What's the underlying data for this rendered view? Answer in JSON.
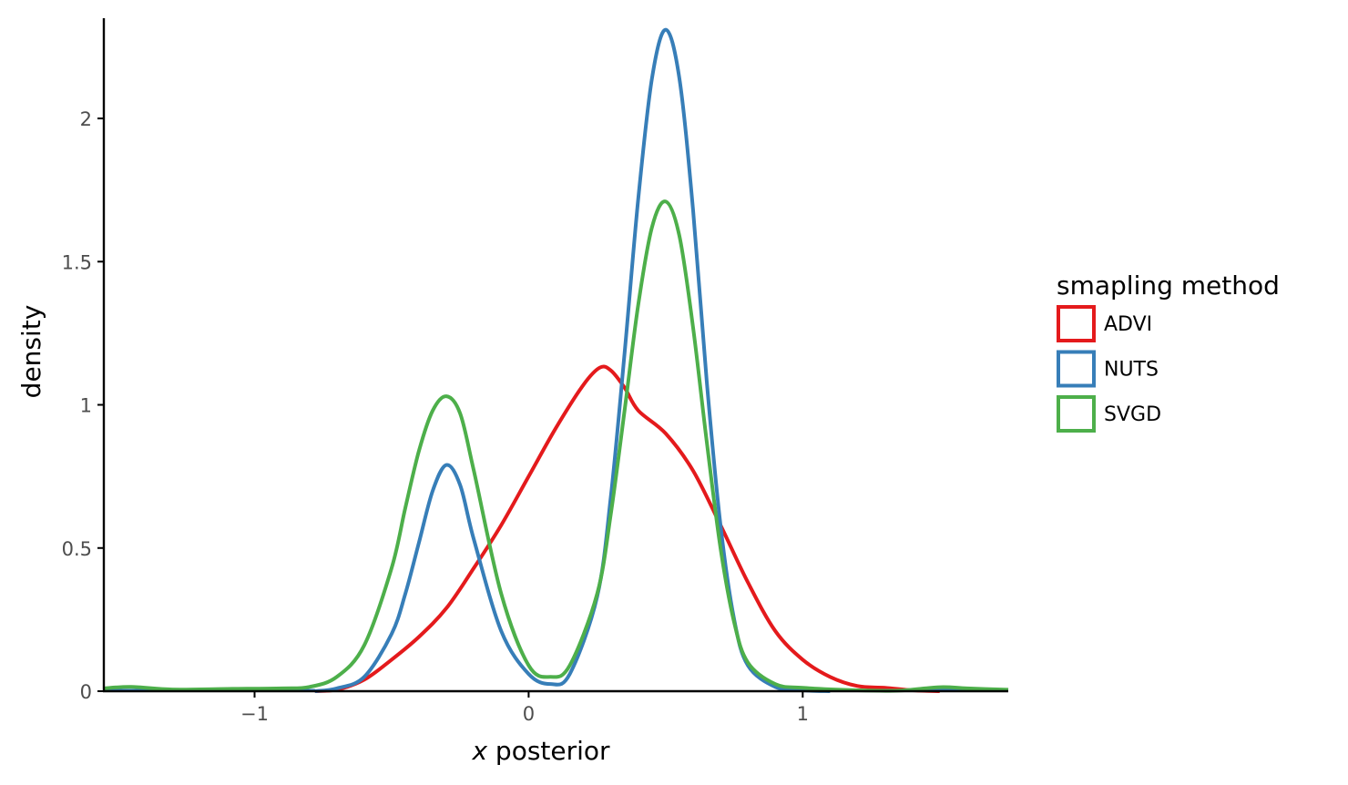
{
  "chart_data": {
    "type": "line",
    "subtype": "density",
    "xlabel_var": "x",
    "xlabel_rest": " posterior",
    "ylabel": "density",
    "xlim": [
      -1.55,
      1.75
    ],
    "ylim": [
      0,
      2.35
    ],
    "x_ticks": [
      {
        "value": -1,
        "label": "−1"
      },
      {
        "value": 0,
        "label": "0"
      },
      {
        "value": 1,
        "label": "1"
      }
    ],
    "y_ticks": [
      {
        "value": 0,
        "label": "0"
      },
      {
        "value": 0.5,
        "label": "0.5"
      },
      {
        "value": 1,
        "label": "1"
      },
      {
        "value": 1.5,
        "label": "1.5"
      },
      {
        "value": 2,
        "label": "2"
      }
    ],
    "grid": false,
    "legend": {
      "title": "smapling method",
      "position": "right"
    },
    "series": [
      {
        "name": "ADVI",
        "color": "#e41a1c",
        "points": [
          [
            -0.78,
            0.0
          ],
          [
            -0.7,
            0.005
          ],
          [
            -0.6,
            0.04
          ],
          [
            -0.5,
            0.11
          ],
          [
            -0.4,
            0.19
          ],
          [
            -0.3,
            0.29
          ],
          [
            -0.2,
            0.43
          ],
          [
            -0.1,
            0.58
          ],
          [
            0.0,
            0.75
          ],
          [
            0.1,
            0.92
          ],
          [
            0.2,
            1.07
          ],
          [
            0.26,
            1.13
          ],
          [
            0.3,
            1.12
          ],
          [
            0.35,
            1.06
          ],
          [
            0.4,
            0.98
          ],
          [
            0.5,
            0.9
          ],
          [
            0.6,
            0.77
          ],
          [
            0.7,
            0.58
          ],
          [
            0.8,
            0.38
          ],
          [
            0.9,
            0.21
          ],
          [
            1.0,
            0.11
          ],
          [
            1.1,
            0.05
          ],
          [
            1.2,
            0.018
          ],
          [
            1.3,
            0.012
          ],
          [
            1.4,
            0.003
          ],
          [
            1.5,
            0.0
          ]
        ]
      },
      {
        "name": "NUTS",
        "color": "#377eb8",
        "points": [
          [
            -0.78,
            0.0
          ],
          [
            -0.7,
            0.01
          ],
          [
            -0.6,
            0.05
          ],
          [
            -0.5,
            0.2
          ],
          [
            -0.45,
            0.34
          ],
          [
            -0.4,
            0.52
          ],
          [
            -0.35,
            0.7
          ],
          [
            -0.3,
            0.79
          ],
          [
            -0.25,
            0.72
          ],
          [
            -0.2,
            0.53
          ],
          [
            -0.1,
            0.21
          ],
          [
            0.0,
            0.06
          ],
          [
            0.08,
            0.025
          ],
          [
            0.15,
            0.06
          ],
          [
            0.25,
            0.33
          ],
          [
            0.3,
            0.68
          ],
          [
            0.35,
            1.18
          ],
          [
            0.4,
            1.72
          ],
          [
            0.45,
            2.14
          ],
          [
            0.5,
            2.31
          ],
          [
            0.55,
            2.14
          ],
          [
            0.6,
            1.68
          ],
          [
            0.65,
            1.08
          ],
          [
            0.7,
            0.58
          ],
          [
            0.75,
            0.25
          ],
          [
            0.8,
            0.09
          ],
          [
            0.9,
            0.015
          ],
          [
            1.0,
            0.003
          ],
          [
            1.1,
            0.0
          ]
        ]
      },
      {
        "name": "SVGD",
        "color": "#4daf4a",
        "points": [
          [
            -1.55,
            0.01
          ],
          [
            -1.45,
            0.015
          ],
          [
            -1.3,
            0.006
          ],
          [
            -1.1,
            0.008
          ],
          [
            -0.9,
            0.01
          ],
          [
            -0.8,
            0.015
          ],
          [
            -0.7,
            0.05
          ],
          [
            -0.6,
            0.16
          ],
          [
            -0.5,
            0.43
          ],
          [
            -0.45,
            0.64
          ],
          [
            -0.4,
            0.84
          ],
          [
            -0.35,
            0.98
          ],
          [
            -0.3,
            1.03
          ],
          [
            -0.25,
            0.97
          ],
          [
            -0.2,
            0.77
          ],
          [
            -0.1,
            0.34
          ],
          [
            0.0,
            0.09
          ],
          [
            0.08,
            0.05
          ],
          [
            0.15,
            0.09
          ],
          [
            0.25,
            0.34
          ],
          [
            0.3,
            0.62
          ],
          [
            0.35,
            0.98
          ],
          [
            0.4,
            1.35
          ],
          [
            0.45,
            1.62
          ],
          [
            0.5,
            1.71
          ],
          [
            0.55,
            1.59
          ],
          [
            0.6,
            1.27
          ],
          [
            0.65,
            0.87
          ],
          [
            0.7,
            0.5
          ],
          [
            0.75,
            0.24
          ],
          [
            0.8,
            0.1
          ],
          [
            0.9,
            0.025
          ],
          [
            1.0,
            0.012
          ],
          [
            1.2,
            0.003
          ],
          [
            1.35,
            0.002
          ],
          [
            1.5,
            0.014
          ],
          [
            1.6,
            0.01
          ],
          [
            1.75,
            0.005
          ]
        ]
      }
    ]
  }
}
